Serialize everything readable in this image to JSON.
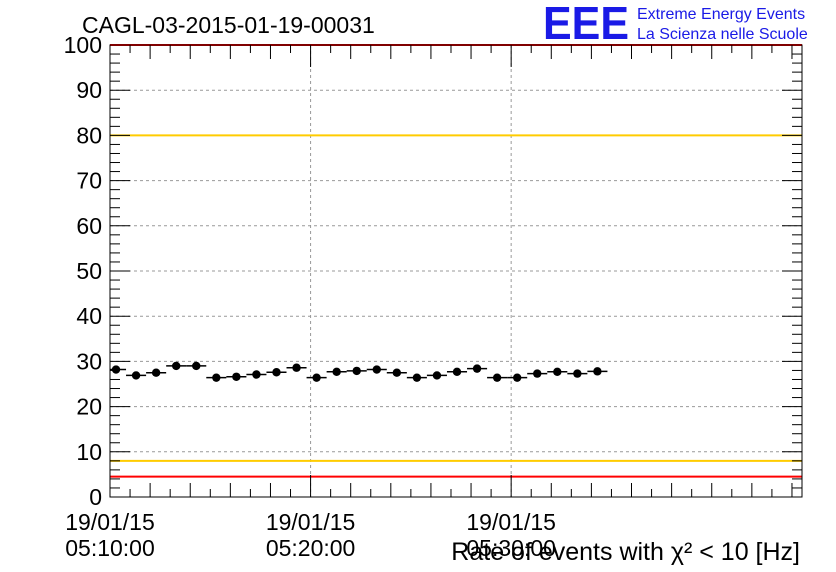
{
  "title": "CAGL-03-2015-01-19-00031",
  "logo": {
    "mark": "EEE",
    "line1": "Extreme Energy Events",
    "line2": "La Scienza nelle Scuole",
    "color": "#1a1ae6"
  },
  "chart_data": {
    "type": "scatter",
    "title": "CAGL-03-2015-01-19-00031",
    "xlabel": "Rate of events with χ² < 10 [Hz]",
    "ylabel": "",
    "ylim": [
      0,
      100
    ],
    "yticks": [
      0,
      10,
      20,
      30,
      40,
      50,
      60,
      70,
      80,
      90,
      100
    ],
    "xlim_minutes": [
      0,
      34.5
    ],
    "x_start": "19/01/15 05:10:00",
    "x_ticks": [
      {
        "minute": 0,
        "date": "19/01/15",
        "time": "05:10:00"
      },
      {
        "minute": 10,
        "date": "19/01/15",
        "time": "05:20:00"
      },
      {
        "minute": 20,
        "date": "19/01/15",
        "time": "05:30:00"
      }
    ],
    "bin_width_minutes": 1,
    "series": [
      {
        "x_minutes": [
          0.3,
          1.3,
          2.3,
          3.3,
          4.3,
          5.3,
          6.3,
          7.3,
          8.3,
          9.3,
          10.3,
          11.3,
          12.3,
          13.3,
          14.3,
          15.3,
          16.3,
          17.3,
          18.3,
          19.3,
          20.3,
          21.3,
          22.3,
          23.3,
          24.3
        ],
        "values": [
          28.2,
          26.9,
          27.5,
          29.0,
          29.0,
          26.4,
          26.6,
          27.1,
          27.6,
          28.6,
          26.4,
          27.7,
          27.9,
          28.2,
          27.5,
          26.4,
          26.9,
          27.7,
          28.4,
          26.4,
          26.4,
          27.3,
          27.7,
          27.3,
          27.8
        ]
      }
    ],
    "reference_lines": [
      {
        "y": 100,
        "color": "#ff0000"
      },
      {
        "y": 80,
        "color": "#ffcc00"
      },
      {
        "y": 8,
        "color": "#ffcc00"
      },
      {
        "y": 4.5,
        "color": "#ff0000"
      }
    ],
    "grid": true
  }
}
